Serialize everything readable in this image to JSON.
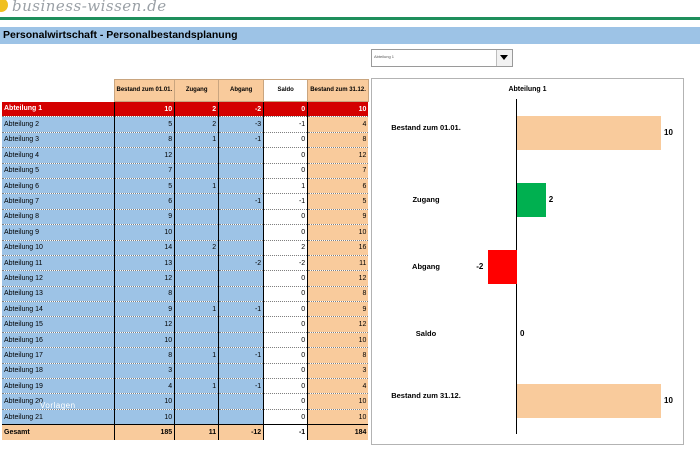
{
  "header": {
    "logo_text": "business-wissen.de",
    "title": "Personalwirtschaft - Personalbestandsplanung"
  },
  "selector": {
    "value": "Abteilung 1"
  },
  "table": {
    "columns": [
      "Bestand zum 01.01.",
      "Zugang",
      "Abgang",
      "Saldo",
      "Bestand zum 31.12."
    ],
    "rows": [
      {
        "name": "Abteilung 1",
        "start": "10",
        "in": "2",
        "out": "-2",
        "saldo": "0",
        "end": "10"
      },
      {
        "name": "Abteilung 2",
        "start": "5",
        "in": "2",
        "out": "-3",
        "saldo": "-1",
        "end": "4"
      },
      {
        "name": "Abteilung 3",
        "start": "8",
        "in": "1",
        "out": "-1",
        "saldo": "0",
        "end": "8"
      },
      {
        "name": "Abteilung 4",
        "start": "12",
        "in": "",
        "out": "",
        "saldo": "0",
        "end": "12"
      },
      {
        "name": "Abteilung 5",
        "start": "7",
        "in": "",
        "out": "",
        "saldo": "0",
        "end": "7"
      },
      {
        "name": "Abteilung 6",
        "start": "5",
        "in": "1",
        "out": "",
        "saldo": "1",
        "end": "6"
      },
      {
        "name": "Abteilung 7",
        "start": "6",
        "in": "",
        "out": "-1",
        "saldo": "-1",
        "end": "5"
      },
      {
        "name": "Abteilung 8",
        "start": "9",
        "in": "",
        "out": "",
        "saldo": "0",
        "end": "9"
      },
      {
        "name": "Abteilung 9",
        "start": "10",
        "in": "",
        "out": "",
        "saldo": "0",
        "end": "10"
      },
      {
        "name": "Abteilung 10",
        "start": "14",
        "in": "2",
        "out": "",
        "saldo": "2",
        "end": "16"
      },
      {
        "name": "Abteilung 11",
        "start": "13",
        "in": "",
        "out": "-2",
        "saldo": "-2",
        "end": "11"
      },
      {
        "name": "Abteilung 12",
        "start": "12",
        "in": "",
        "out": "",
        "saldo": "0",
        "end": "12"
      },
      {
        "name": "Abteilung 13",
        "start": "8",
        "in": "",
        "out": "",
        "saldo": "0",
        "end": "8"
      },
      {
        "name": "Abteilung 14",
        "start": "9",
        "in": "1",
        "out": "-1",
        "saldo": "0",
        "end": "9"
      },
      {
        "name": "Abteilung 15",
        "start": "12",
        "in": "",
        "out": "",
        "saldo": "0",
        "end": "12"
      },
      {
        "name": "Abteilung 16",
        "start": "10",
        "in": "",
        "out": "",
        "saldo": "0",
        "end": "10"
      },
      {
        "name": "Abteilung 17",
        "start": "8",
        "in": "1",
        "out": "-1",
        "saldo": "0",
        "end": "8"
      },
      {
        "name": "Abteilung 18",
        "start": "3",
        "in": "",
        "out": "",
        "saldo": "0",
        "end": "3"
      },
      {
        "name": "Abteilung 19",
        "start": "4",
        "in": "1",
        "out": "-1",
        "saldo": "0",
        "end": "4"
      },
      {
        "name": "Abteilung 20",
        "start": "10",
        "in": "",
        "out": "",
        "saldo": "0",
        "end": "10"
      },
      {
        "name": "Abteilung 21",
        "start": "10",
        "in": "",
        "out": "",
        "saldo": "0",
        "end": "10"
      }
    ],
    "total": {
      "name": "Gesamt",
      "start": "185",
      "in": "11",
      "out": "-12",
      "saldo": "-1",
      "end": "184"
    }
  },
  "watermark": "Vorlagen",
  "chart_data": {
    "type": "bar",
    "orientation": "horizontal",
    "title": "Abteilung 1",
    "categories": [
      "Bestand zum 01.01.",
      "Zugang",
      "Abgang",
      "Saldo",
      "Bestand zum 31.12."
    ],
    "values": [
      10,
      2,
      -2,
      0,
      10
    ],
    "colors": [
      "#f9cb9c",
      "#00b050",
      "#ff0000",
      "#f9cb9c",
      "#f9cb9c"
    ],
    "xlim": [
      -3,
      13
    ]
  },
  "colors": {
    "accent_blue": "#9dc3e6",
    "peach": "#f9cb9c",
    "selected_red": "#d40000",
    "brand_green": "#1e8f5c"
  }
}
